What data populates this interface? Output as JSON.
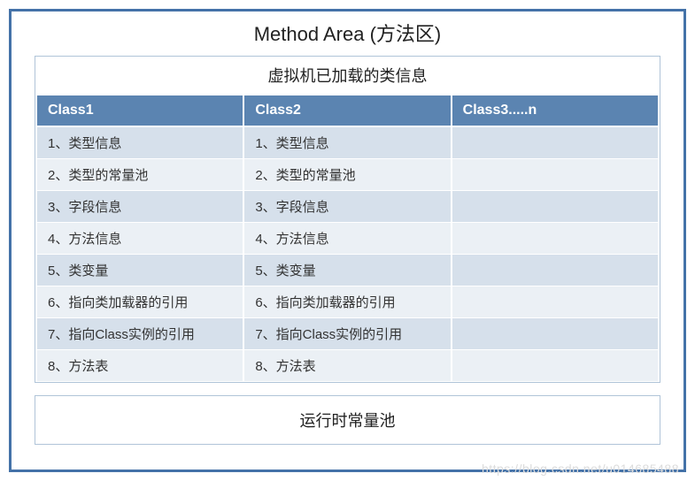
{
  "title": "Method Area (方法区)",
  "box": {
    "subtitle": "虚拟机已加载的类信息",
    "columns": [
      "Class1",
      "Class2",
      "Class3.....n"
    ],
    "rows": [
      [
        "1、类型信息",
        "1、类型信息",
        ""
      ],
      [
        "2、类型的常量池",
        "2、类型的常量池",
        ""
      ],
      [
        "3、字段信息",
        "3、字段信息",
        ""
      ],
      [
        "4、方法信息",
        "4、方法信息",
        ""
      ],
      [
        "5、类变量",
        "5、类变量",
        ""
      ],
      [
        "6、指向类加载器的引用",
        "6、指向类加载器的引用",
        ""
      ],
      [
        "7、指向Class实例的引用",
        "7、指向Class实例的引用",
        ""
      ],
      [
        "8、方法表",
        "8、方法表",
        ""
      ]
    ]
  },
  "footer": "运行时常量池",
  "watermark": "https://blog.csdn.net/u014685488",
  "style": {
    "border_color": "#4472a8",
    "inner_border_color": "#b0c4d8",
    "header_bg": "#5b84b1",
    "header_fg": "#ffffff",
    "row_odd_bg": "#d6e0eb",
    "row_even_bg": "#ebf0f5",
    "cell_border": "#ffffff",
    "title_fontsize": 22,
    "subtitle_fontsize": 18,
    "cell_fontsize": 15,
    "col_widths_pct": [
      33.3,
      33.3,
      33.4
    ]
  }
}
